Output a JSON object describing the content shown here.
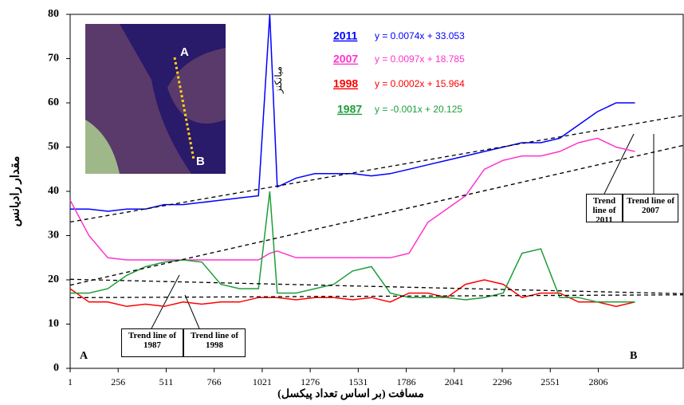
{
  "chart_data": {
    "type": "line",
    "ylabel": "مقدار رادیانس",
    "xlabel": "مسافت (بر اساس تعداد پیکسل)",
    "x": [
      1,
      101,
      201,
      301,
      401,
      501,
      601,
      701,
      801,
      901,
      1001,
      1061,
      1101,
      1201,
      1301,
      1401,
      1501,
      1601,
      1701,
      1801,
      1901,
      2001,
      2101,
      2201,
      2301,
      2401,
      2501,
      2601,
      2701,
      2801,
      2901,
      3001
    ],
    "xlim": [
      1,
      3257
    ],
    "xticks": [
      1,
      256,
      511,
      766,
      1021,
      1276,
      1531,
      1786,
      2041,
      2296,
      2551,
      2806
    ],
    "ylim": [
      0,
      80
    ],
    "yticks": [
      0,
      10,
      20,
      30,
      40,
      50,
      60,
      70,
      80
    ],
    "series": [
      {
        "name": "2011",
        "color": "#0000ff",
        "equation": "y = 0.0074x + 33.053",
        "trend": {
          "slope": 0.0074,
          "intercept": 33.053
        },
        "values": [
          36,
          36,
          35.5,
          36,
          36,
          37,
          37,
          37.5,
          38,
          38.5,
          39,
          80,
          41,
          43,
          44,
          44,
          44,
          43.5,
          44,
          45,
          46,
          47,
          48,
          49,
          50,
          51,
          51,
          52,
          55,
          58,
          60,
          60
        ]
      },
      {
        "name": "2007",
        "color": "#ff33cc",
        "equation": "y = 0.0097x + 18.785",
        "trend": {
          "slope": 0.0097,
          "intercept": 18.785
        },
        "values": [
          38,
          30,
          25,
          24.5,
          24.5,
          24.5,
          24.5,
          24.5,
          24.5,
          24.5,
          24.5,
          26,
          26.5,
          25,
          25,
          25,
          25,
          25,
          25,
          26,
          33,
          36,
          39,
          45,
          47,
          48,
          48,
          49,
          51,
          52,
          50,
          49
        ]
      },
      {
        "name": "1998",
        "color": "#ff0000",
        "equation": "y = 0.0002x + 15.964",
        "trend": {
          "slope": 0.0002,
          "intercept": 15.964
        },
        "values": [
          18,
          15,
          15,
          14,
          14.5,
          14,
          15,
          14.5,
          15,
          15,
          16,
          16,
          16,
          15.5,
          16,
          16,
          15.5,
          16,
          15,
          17,
          17,
          16,
          19,
          20,
          19,
          16,
          17,
          17,
          15,
          15,
          14,
          15
        ]
      },
      {
        "name": "1987",
        "color": "#1e9e3a",
        "equation": "y = -0.001x + 20.125",
        "trend": {
          "slope": -0.001,
          "intercept": 20.125
        },
        "values": [
          17,
          17,
          18,
          21,
          23,
          24,
          24.5,
          24,
          19,
          18,
          18,
          40,
          17,
          17,
          18,
          19,
          22,
          23,
          17,
          16,
          16,
          16,
          15.5,
          16,
          17,
          26,
          27,
          16,
          16,
          15,
          15,
          15
        ]
      }
    ],
    "annotations": [
      "Trend line of 2011",
      "Trend line of 2007",
      "Trend line of 1987",
      "Trend line of 1998",
      "A",
      "B",
      "میانکنز",
      "A",
      "B"
    ]
  }
}
